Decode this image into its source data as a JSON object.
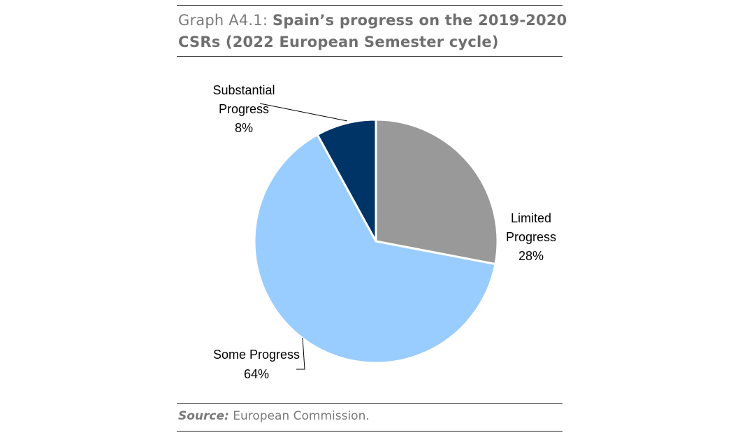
{
  "title": {
    "prefix": "Graph A4.1:",
    "main": "Spain’s progress on the 2019-2020 CSRs (2022 European Semester cycle)"
  },
  "source": {
    "label": "Source:",
    "text": "European Commission."
  },
  "chart_data": {
    "type": "pie",
    "categories": [
      "Limited Progress",
      "Some Progress",
      "Substantial Progress"
    ],
    "values": [
      28,
      64,
      8
    ],
    "labels": [
      [
        "Limited",
        "Progress",
        "28%"
      ],
      [
        "Some Progress",
        "64%"
      ],
      [
        "Substantial",
        "Progress",
        "8%"
      ]
    ],
    "colors": [
      "#999999",
      "#99ccff",
      "#003366"
    ],
    "start": "12 o'clock, clockwise",
    "legend": "none (data labels)"
  }
}
